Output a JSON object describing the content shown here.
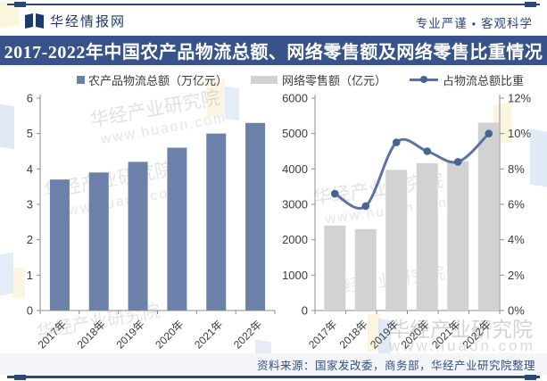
{
  "header": {
    "brand": "华经情报网",
    "slogan_left": "专业严谨",
    "slogan_separator": "•",
    "slogan_right": "客观科学"
  },
  "title": "2017-2022年中国农产品物流总额、网络零售额及网络零售比重情况",
  "legend": [
    {
      "label": "农产品物流总额（万亿元）",
      "swatch": "square",
      "color": "#6b81a9"
    },
    {
      "label": "网络零售额（亿元）",
      "swatch": "bar",
      "color": "#d2d2d2"
    },
    {
      "label": "占物流总额比重",
      "swatch": "line-dot",
      "color": "#5a73a2"
    }
  ],
  "chart_data": [
    {
      "type": "bar",
      "title": "农产品物流总额",
      "categories": [
        "2017年",
        "2018年",
        "2019年",
        "2020年",
        "2021年",
        "2022年"
      ],
      "values": [
        3.7,
        3.9,
        4.2,
        4.6,
        5.0,
        5.3
      ],
      "ylabel": "万亿元",
      "ylim": [
        0,
        6
      ],
      "ytick_step": 1,
      "bar_color": "#6b81a9",
      "grid": false,
      "legend_position": "top"
    },
    {
      "type": "bar",
      "title": "网络零售额及占物流总额比重",
      "categories": [
        "2017年",
        "2018年",
        "2019年",
        "2020年",
        "2021年",
        "2022年"
      ],
      "series": [
        {
          "name": "网络零售额（亿元）",
          "type": "bar",
          "axis": "left",
          "values": [
            2400,
            2300,
            3975,
            4160,
            4220,
            5310
          ],
          "color": "#d2d2d2"
        },
        {
          "name": "占物流总额比重",
          "type": "line",
          "axis": "right",
          "values": [
            6.6,
            5.9,
            9.5,
            9.0,
            8.4,
            10.0
          ],
          "unit": "%",
          "color": "#5a73a2",
          "marker_color": "#47648f"
        }
      ],
      "ylim_left": [
        0,
        6000
      ],
      "ytick_step_left": 1000,
      "ylim_right": [
        0,
        12
      ],
      "ytick_step_right": 2,
      "right_tick_suffix": "%",
      "grid": false,
      "legend_position": "top"
    }
  ],
  "footer": {
    "source": "资料来源：国家发改委，商务部，华经产业研究院整理"
  },
  "watermark": {
    "text": "华经产业研究院",
    "url": "www.huaon.com"
  },
  "colors": {
    "navy": "#2b4779",
    "title_bar": "#37538a",
    "bar_blue": "#6b81a9",
    "bar_gray": "#d2d2d2",
    "line_blue": "#5a73a2",
    "marker_blue": "#47648f",
    "footer_bg": "#f4f5f9"
  }
}
